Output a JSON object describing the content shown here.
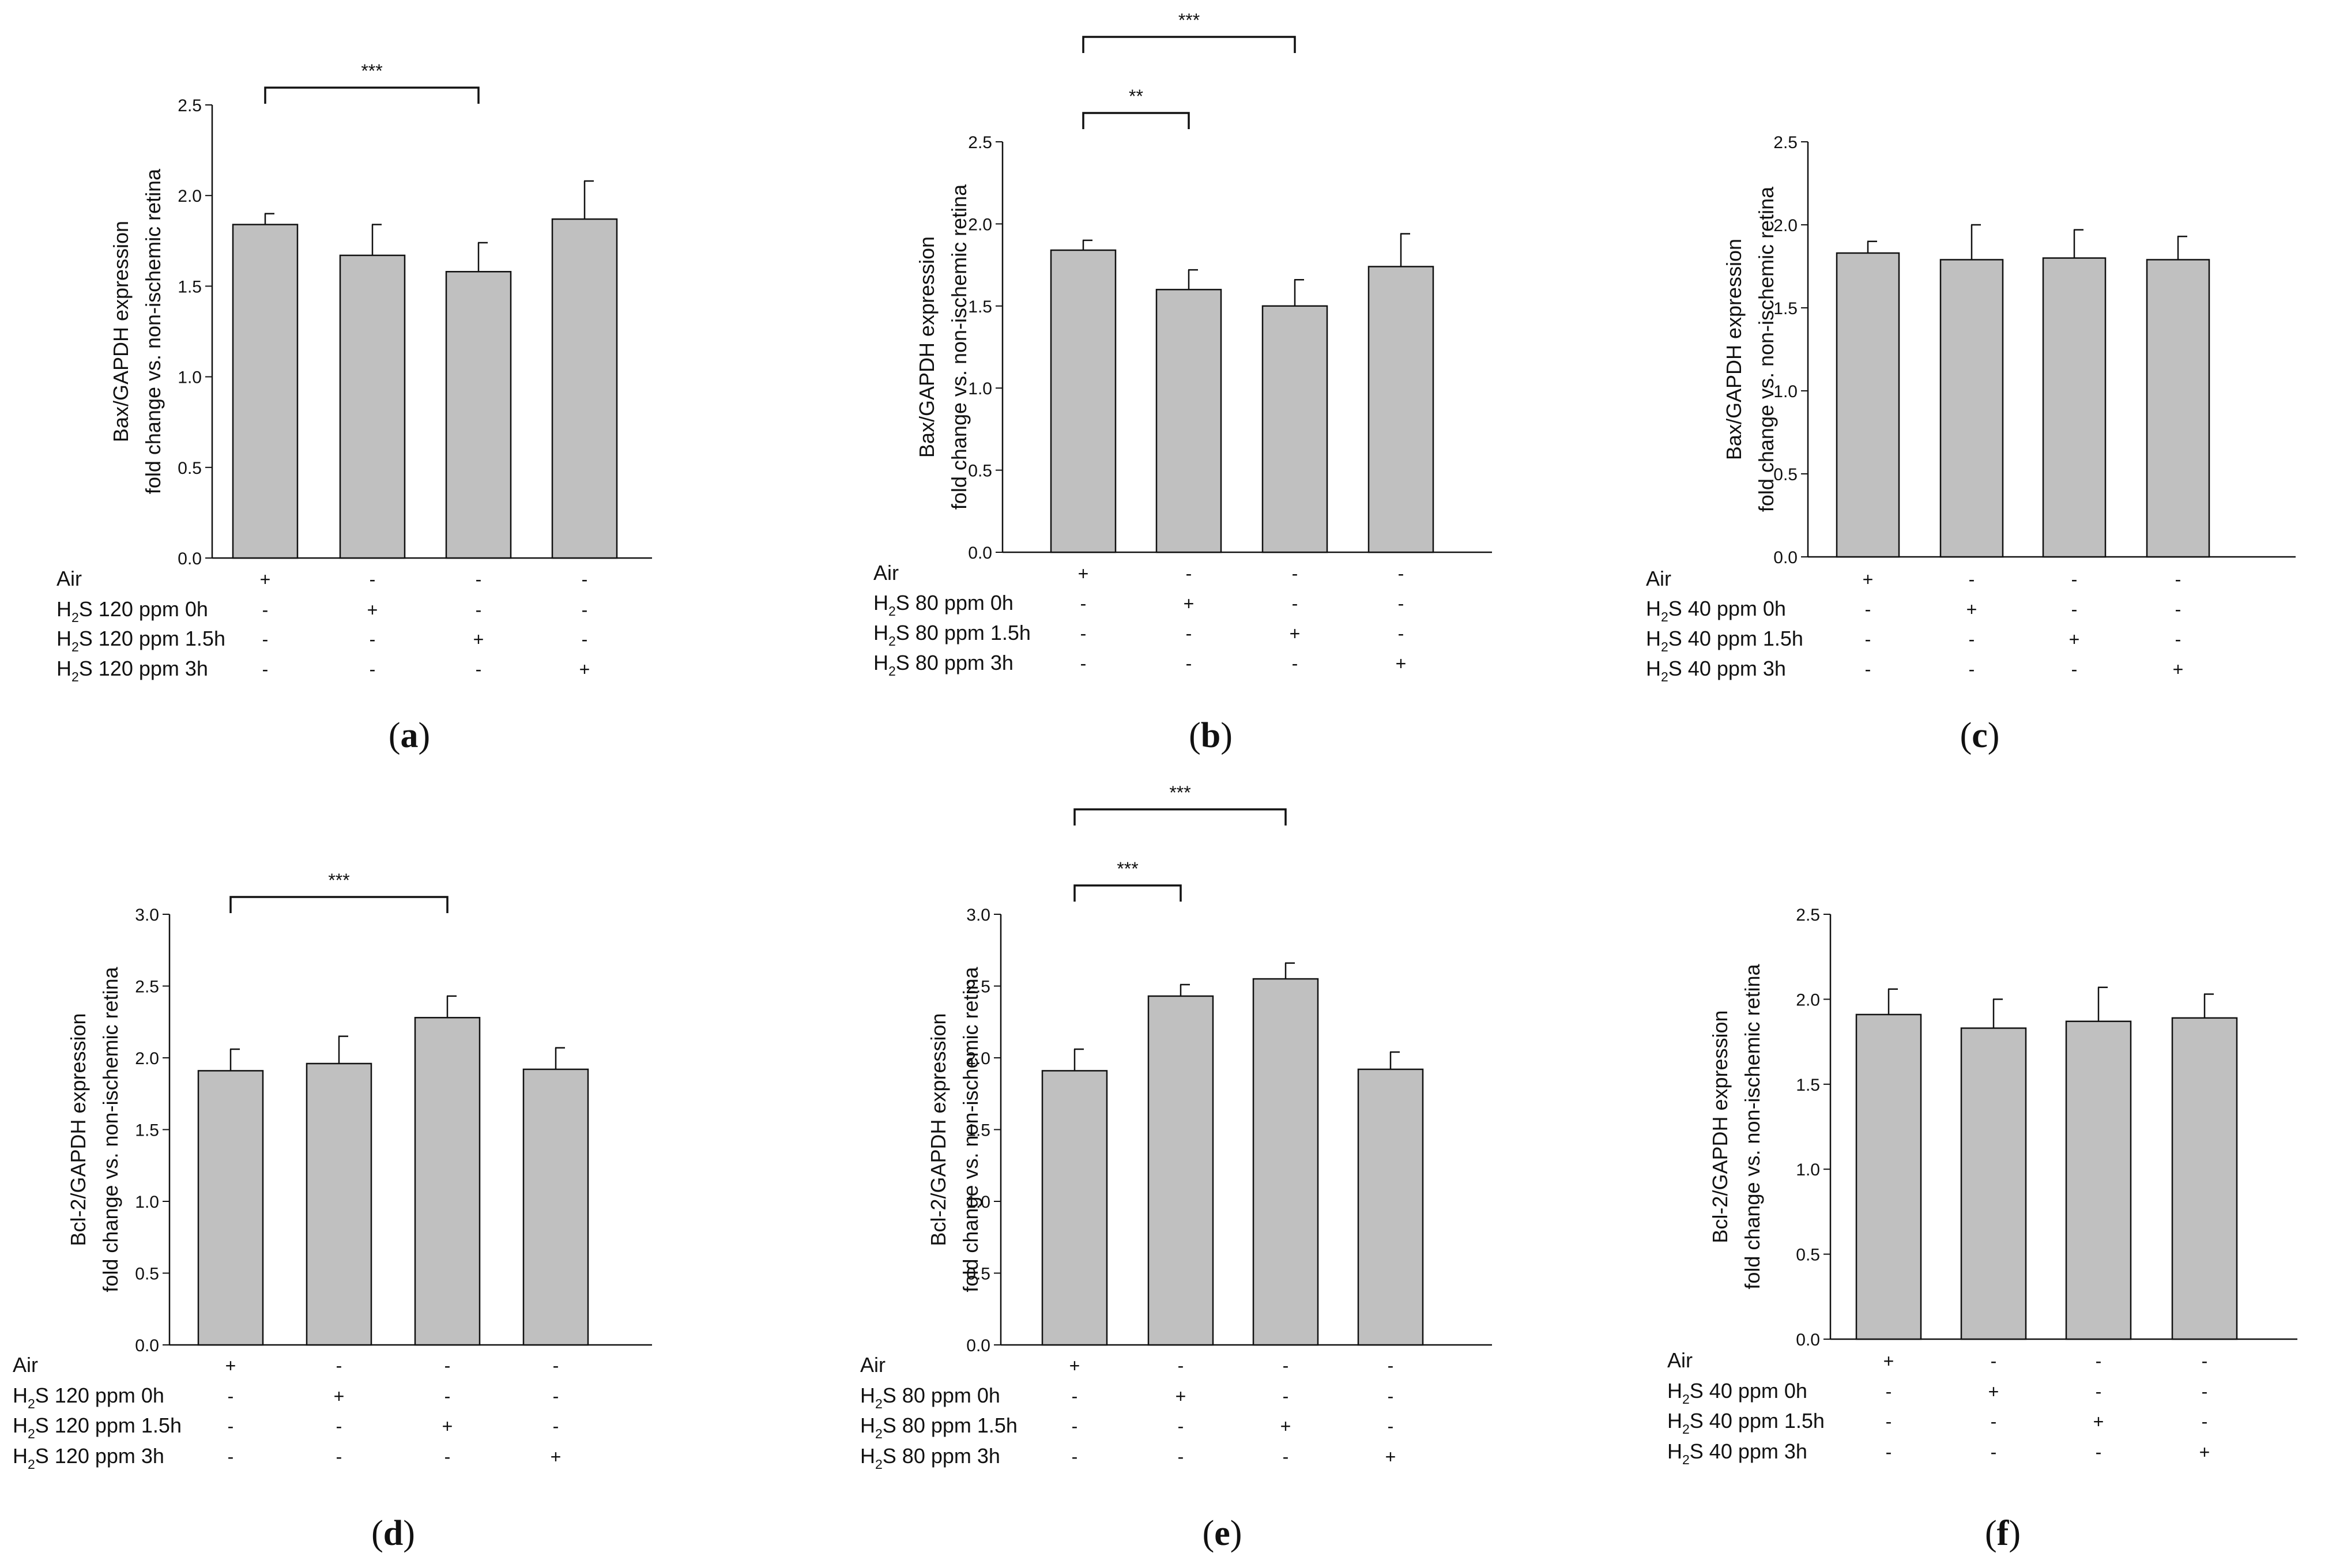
{
  "figure": {
    "bar_color": "#c0c0c0",
    "line_color": "#111111"
  },
  "chart_data": [
    {
      "type": "bar",
      "panel": "a",
      "ylabel": [
        "Bax/GAPDH expression",
        "fold change vs. non-ischemic retina"
      ],
      "ylim": [
        0,
        2.5
      ],
      "yticks": [
        "0.0",
        "0.5",
        "1.0",
        "1.5",
        "2.0",
        "2.5"
      ],
      "values": [
        1.84,
        1.67,
        1.58,
        1.87
      ],
      "errors": [
        0.06,
        0.17,
        0.16,
        0.21
      ],
      "conditions": [
        "Air",
        "H2S 120 ppm 0h",
        "H2S 120 ppm 1.5h",
        "H2S 120 ppm 3h"
      ],
      "signs": [
        [
          "+",
          "-",
          "-",
          "-"
        ],
        [
          "-",
          "+",
          "-",
          "-"
        ],
        [
          "-",
          "-",
          "+",
          "-"
        ],
        [
          "-",
          "-",
          "-",
          "+"
        ]
      ],
      "brackets": [
        {
          "from": 0,
          "to": 2,
          "label": "***"
        }
      ]
    },
    {
      "type": "bar",
      "panel": "b",
      "ylabel": [
        "Bax/GAPDH expression",
        "fold change vs. non-ischemic retina"
      ],
      "ylim": [
        0,
        2.5
      ],
      "yticks": [
        "0.0",
        "0.5",
        "1.0",
        "1.5",
        "2.0",
        "2.5"
      ],
      "values": [
        1.84,
        1.6,
        1.5,
        1.74
      ],
      "errors": [
        0.06,
        0.12,
        0.16,
        0.2
      ],
      "conditions": [
        "Air",
        "H2S 80 ppm 0h",
        "H2S 80 ppm 1.5h",
        "H2S 80 ppm 3h"
      ],
      "signs": [
        [
          "+",
          "-",
          "-",
          "-"
        ],
        [
          "-",
          "+",
          "-",
          "-"
        ],
        [
          "-",
          "-",
          "+",
          "-"
        ],
        [
          "-",
          "-",
          "-",
          "+"
        ]
      ],
      "brackets": [
        {
          "from": 0,
          "to": 1,
          "label": "**"
        },
        {
          "from": 0,
          "to": 2,
          "label": "***"
        }
      ]
    },
    {
      "type": "bar",
      "panel": "c",
      "ylabel": [
        "Bax/GAPDH expression",
        "fold change vs. non-ischemic retina"
      ],
      "ylim": [
        0,
        2.5
      ],
      "yticks": [
        "0.0",
        "0.5",
        "1.0",
        "1.5",
        "2.0",
        "2.5"
      ],
      "values": [
        1.83,
        1.79,
        1.8,
        1.79
      ],
      "errors": [
        0.07,
        0.21,
        0.17,
        0.14
      ],
      "conditions": [
        "Air",
        "H2S 40 ppm 0h",
        "H2S 40 ppm 1.5h",
        "H2S 40 ppm 3h"
      ],
      "signs": [
        [
          "+",
          "-",
          "-",
          "-"
        ],
        [
          "-",
          "+",
          "-",
          "-"
        ],
        [
          "-",
          "-",
          "+",
          "-"
        ],
        [
          "-",
          "-",
          "-",
          "+"
        ]
      ],
      "brackets": []
    },
    {
      "type": "bar",
      "panel": "d",
      "ylabel": [
        "Bcl-2/GAPDH expression",
        "fold change vs. non-ischemic retina"
      ],
      "ylim": [
        0,
        3.0
      ],
      "yticks": [
        "0.0",
        "0.5",
        "1.0",
        "1.5",
        "2.0",
        "2.5",
        "3.0"
      ],
      "values": [
        1.91,
        1.96,
        2.28,
        1.92
      ],
      "errors": [
        0.15,
        0.19,
        0.15,
        0.15
      ],
      "conditions": [
        "Air",
        "H2S 120 ppm 0h",
        "H2S 120 ppm 1.5h",
        "H2S 120 ppm 3h"
      ],
      "signs": [
        [
          "+",
          "-",
          "-",
          "-"
        ],
        [
          "-",
          "+",
          "-",
          "-"
        ],
        [
          "-",
          "-",
          "+",
          "-"
        ],
        [
          "-",
          "-",
          "-",
          "+"
        ]
      ],
      "brackets": [
        {
          "from": 0,
          "to": 2,
          "label": "***"
        }
      ]
    },
    {
      "type": "bar",
      "panel": "e",
      "ylabel": [
        "Bcl-2/GAPDH expression",
        "fold change vs. non-ischemic retina"
      ],
      "ylim": [
        0,
        3.0
      ],
      "yticks": [
        "0.0",
        "0.5",
        "1.0",
        "1.5",
        "2.0",
        "2.5",
        "3.0"
      ],
      "values": [
        1.91,
        2.43,
        2.55,
        1.92
      ],
      "errors": [
        0.15,
        0.08,
        0.11,
        0.12
      ],
      "conditions": [
        "Air",
        "H2S 80 ppm 0h",
        "H2S 80 ppm 1.5h",
        "H2S 80 ppm 3h"
      ],
      "signs": [
        [
          "+",
          "-",
          "-",
          "-"
        ],
        [
          "-",
          "+",
          "-",
          "-"
        ],
        [
          "-",
          "-",
          "+",
          "-"
        ],
        [
          "-",
          "-",
          "-",
          "+"
        ]
      ],
      "brackets": [
        {
          "from": 0,
          "to": 1,
          "label": "***"
        },
        {
          "from": 0,
          "to": 2,
          "label": "***"
        }
      ]
    },
    {
      "type": "bar",
      "panel": "f",
      "ylabel": [
        "Bcl-2/GAPDH expression",
        "fold change vs. non-ischemic retina"
      ],
      "ylim": [
        0,
        2.5
      ],
      "yticks": [
        "0.0",
        "0.5",
        "1.0",
        "1.5",
        "2.0",
        "2.5"
      ],
      "values": [
        1.91,
        1.83,
        1.87,
        1.89
      ],
      "errors": [
        0.15,
        0.17,
        0.2,
        0.14
      ],
      "conditions": [
        "Air",
        "H2S 40 ppm 0h",
        "H2S 40 ppm 1.5h",
        "H2S 40 ppm 3h"
      ],
      "signs": [
        [
          "+",
          "-",
          "-",
          "-"
        ],
        [
          "-",
          "+",
          "-",
          "-"
        ],
        [
          "-",
          "-",
          "+",
          "-"
        ],
        [
          "-",
          "-",
          "-",
          "+"
        ]
      ],
      "brackets": []
    }
  ]
}
